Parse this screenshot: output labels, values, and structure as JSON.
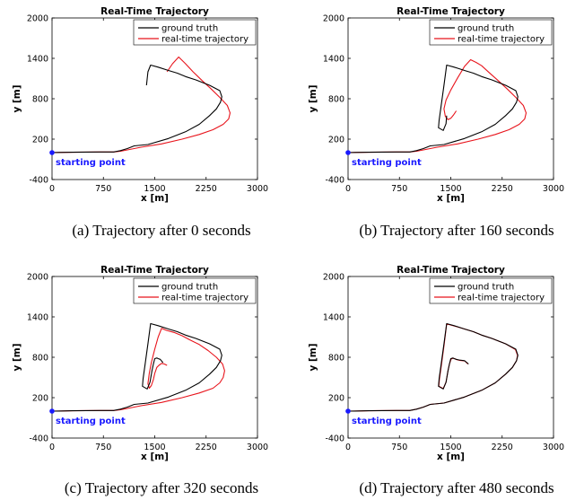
{
  "colors": {
    "ground_truth": "#000000",
    "realtime": "#e8141c",
    "start": "#1a1aff"
  },
  "chart_data": [
    {
      "type": "line",
      "title": "Real-Time Trajectory",
      "xlabel": "x [m]",
      "ylabel": "y [m]",
      "xlim": [
        0,
        3000
      ],
      "ylim": [
        -400,
        2000
      ],
      "xticks": [
        "0",
        "750",
        "1500",
        "2250",
        "3000"
      ],
      "yticks": [
        "-400",
        "200",
        "800",
        "1400",
        "2000"
      ],
      "legend": "top-right",
      "annotation": "starting point",
      "start_point": [
        0,
        0
      ],
      "caption": "(a) Trajectory after 0 seconds",
      "series": [
        {
          "name": "ground truth",
          "x": [
            0,
            100,
            300,
            500,
            700,
            900,
            1000,
            1100,
            1200,
            1400,
            1700,
            1950,
            2150,
            2300,
            2400,
            2460,
            2480,
            2450,
            2300,
            2100,
            1950,
            1830,
            1700,
            1550,
            1440,
            1400,
            1380
          ],
          "y": [
            0,
            2,
            5,
            8,
            10,
            10,
            30,
            60,
            100,
            120,
            210,
            310,
            420,
            550,
            650,
            750,
            830,
            920,
            1000,
            1080,
            1130,
            1180,
            1220,
            1270,
            1300,
            1200,
            1000
          ]
        },
        {
          "name": "real-time trajectory",
          "x": [
            0,
            100,
            300,
            500,
            700,
            900,
            1000,
            1100,
            1300,
            1600,
            1900,
            2150,
            2350,
            2500,
            2580,
            2600,
            2560,
            2450,
            2320,
            2190,
            2060,
            1950,
            1850,
            1760,
            1680
          ],
          "y": [
            0,
            2,
            5,
            8,
            10,
            10,
            20,
            40,
            80,
            130,
            200,
            270,
            340,
            420,
            500,
            590,
            700,
            820,
            950,
            1070,
            1200,
            1320,
            1420,
            1320,
            1200
          ]
        }
      ]
    },
    {
      "type": "line",
      "title": "Real-Time Trajectory",
      "xlabel": "x [m]",
      "ylabel": "y [m]",
      "xlim": [
        0,
        3000
      ],
      "ylim": [
        -400,
        2000
      ],
      "xticks": [
        "0",
        "750",
        "1500",
        "2250",
        "3000"
      ],
      "yticks": [
        "-400",
        "200",
        "800",
        "1400",
        "2000"
      ],
      "legend": "top-right",
      "annotation": "starting point",
      "start_point": [
        0,
        0
      ],
      "caption": "(b) Trajectory after 160 seconds",
      "series": [
        {
          "name": "ground truth",
          "x": [
            0,
            100,
            300,
            500,
            700,
            900,
            1000,
            1100,
            1200,
            1400,
            1700,
            1950,
            2150,
            2300,
            2400,
            2460,
            2480,
            2450,
            2300,
            2100,
            1950,
            1830,
            1700,
            1550,
            1440,
            1400,
            1360,
            1330,
            1320,
            1390,
            1430,
            1440
          ],
          "y": [
            0,
            2,
            5,
            8,
            10,
            10,
            30,
            60,
            100,
            120,
            210,
            310,
            420,
            550,
            650,
            750,
            830,
            920,
            1000,
            1080,
            1130,
            1180,
            1220,
            1270,
            1300,
            1000,
            700,
            480,
            370,
            330,
            430,
            550
          ]
        },
        {
          "name": "real-time trajectory",
          "x": [
            0,
            100,
            300,
            500,
            700,
            900,
            1000,
            1100,
            1300,
            1600,
            1900,
            2150,
            2350,
            2500,
            2580,
            2600,
            2560,
            2450,
            2320,
            2190,
            2060,
            1950,
            1870,
            1790,
            1700,
            1600,
            1500,
            1430,
            1400,
            1420,
            1460,
            1500,
            1540,
            1580
          ],
          "y": [
            0,
            2,
            5,
            8,
            10,
            10,
            20,
            40,
            80,
            130,
            200,
            270,
            340,
            420,
            500,
            590,
            700,
            820,
            950,
            1070,
            1190,
            1290,
            1340,
            1380,
            1280,
            1110,
            930,
            780,
            650,
            540,
            490,
            510,
            560,
            620
          ]
        }
      ]
    },
    {
      "type": "line",
      "title": "Real-Time Trajectory",
      "xlabel": "x [m]",
      "ylabel": "y [m]",
      "xlim": [
        0,
        3000
      ],
      "ylim": [
        -400,
        2000
      ],
      "xticks": [
        "0",
        "750",
        "1500",
        "2250",
        "3000"
      ],
      "yticks": [
        "-400",
        "200",
        "800",
        "1400",
        "2000"
      ],
      "legend": "top-right",
      "annotation": "starting point",
      "start_point": [
        0,
        0
      ],
      "caption": "(c) Trajectory after 320 seconds",
      "series": [
        {
          "name": "ground truth",
          "x": [
            0,
            100,
            300,
            500,
            700,
            900,
            1000,
            1100,
            1200,
            1400,
            1700,
            1950,
            2150,
            2300,
            2400,
            2460,
            2480,
            2450,
            2300,
            2100,
            1950,
            1830,
            1700,
            1550,
            1440,
            1400,
            1360,
            1330,
            1320,
            1390,
            1430,
            1460,
            1480,
            1500,
            1530,
            1550,
            1580,
            1620
          ],
          "y": [
            0,
            2,
            5,
            8,
            10,
            10,
            30,
            60,
            100,
            120,
            210,
            310,
            420,
            550,
            650,
            750,
            830,
            920,
            1000,
            1080,
            1130,
            1180,
            1220,
            1270,
            1300,
            1000,
            700,
            480,
            370,
            330,
            430,
            600,
            700,
            780,
            790,
            780,
            770,
            720
          ]
        },
        {
          "name": "real-time trajectory",
          "x": [
            0,
            100,
            300,
            500,
            700,
            900,
            1000,
            1100,
            1300,
            1600,
            1900,
            2150,
            2350,
            2450,
            2500,
            2520,
            2490,
            2400,
            2280,
            2150,
            2010,
            1900,
            1780,
            1670,
            1600,
            1550,
            1500,
            1450,
            1420,
            1400,
            1420,
            1450,
            1480,
            1500,
            1530,
            1560,
            1600,
            1640,
            1680
          ],
          "y": [
            0,
            2,
            5,
            8,
            10,
            10,
            20,
            40,
            80,
            130,
            200,
            270,
            340,
            420,
            500,
            600,
            700,
            800,
            900,
            990,
            1060,
            1120,
            1170,
            1200,
            1230,
            1100,
            920,
            720,
            560,
            410,
            340,
            380,
            470,
            560,
            650,
            680,
            710,
            700,
            680
          ]
        }
      ]
    },
    {
      "type": "line",
      "title": "Real-Time Trajectory",
      "xlabel": "x [m]",
      "ylabel": "y [m]",
      "xlim": [
        0,
        3000
      ],
      "ylim": [
        -400,
        2000
      ],
      "xticks": [
        "0",
        "750",
        "1500",
        "2250",
        "3000"
      ],
      "yticks": [
        "-400",
        "200",
        "800",
        "1400",
        "2000"
      ],
      "legend": "top-right",
      "annotation": "starting point",
      "start_point": [
        0,
        0
      ],
      "caption": "(d) Trajectory after 480 seconds",
      "series": [
        {
          "name": "ground truth",
          "x": [
            0,
            100,
            300,
            500,
            700,
            900,
            1000,
            1100,
            1200,
            1400,
            1700,
            1950,
            2150,
            2300,
            2400,
            2460,
            2480,
            2450,
            2300,
            2100,
            1950,
            1830,
            1700,
            1550,
            1440,
            1400,
            1360,
            1330,
            1320,
            1390,
            1430,
            1460,
            1480,
            1500,
            1530,
            1550,
            1580,
            1620,
            1700,
            1760
          ],
          "y": [
            0,
            2,
            5,
            8,
            10,
            10,
            30,
            60,
            100,
            120,
            210,
            310,
            420,
            550,
            650,
            750,
            830,
            920,
            1000,
            1080,
            1130,
            1180,
            1220,
            1270,
            1300,
            1000,
            700,
            480,
            370,
            330,
            430,
            600,
            700,
            780,
            790,
            780,
            770,
            760,
            750,
            700
          ]
        },
        {
          "name": "real-time trajectory",
          "x": [
            0,
            100,
            300,
            500,
            700,
            900,
            1000,
            1100,
            1200,
            1400,
            1700,
            1950,
            2150,
            2300,
            2400,
            2460,
            2475,
            2445,
            2300,
            2100,
            1950,
            1830,
            1700,
            1550,
            1440,
            1405,
            1365,
            1335,
            1325,
            1390,
            1430,
            1460,
            1480,
            1505,
            1535,
            1555,
            1585,
            1625,
            1705,
            1750
          ],
          "y": [
            0,
            2,
            5,
            8,
            10,
            10,
            30,
            60,
            100,
            120,
            210,
            310,
            420,
            550,
            650,
            750,
            830,
            915,
            1000,
            1080,
            1130,
            1180,
            1220,
            1265,
            1295,
            1000,
            700,
            480,
            370,
            335,
            430,
            600,
            700,
            775,
            785,
            780,
            765,
            755,
            745,
            700
          ]
        }
      ]
    }
  ]
}
